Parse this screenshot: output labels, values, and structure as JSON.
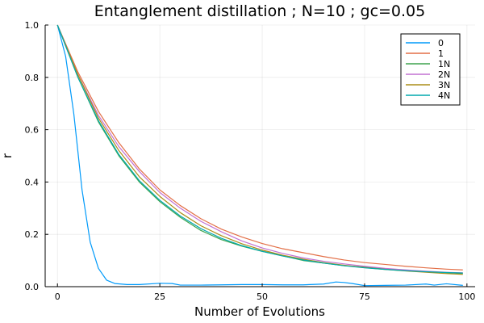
{
  "chart_data": {
    "type": "line",
    "title": "Entanglement distillation ; N=10 ; gc=0.05",
    "xlabel": "Number of Evolutions",
    "ylabel": "r",
    "xlim": [
      -3,
      102
    ],
    "ylim": [
      0.0,
      1.0
    ],
    "x_ticks": [
      0,
      25,
      50,
      75,
      100
    ],
    "x_tick_labels": [
      "0",
      "25",
      "50",
      "75",
      "100"
    ],
    "y_ticks": [
      0.0,
      0.2,
      0.4,
      0.6,
      0.8,
      1.0
    ],
    "y_tick_labels": [
      "0.0",
      "0.2",
      "0.4",
      "0.6",
      "0.8",
      "1.0"
    ],
    "grid": true,
    "legend_position": "top-right",
    "x": [
      0,
      5,
      10,
      15,
      20,
      25,
      30,
      35,
      40,
      45,
      50,
      55,
      60,
      65,
      70,
      75,
      80,
      85,
      90,
      95,
      99
    ],
    "series": [
      {
        "name": "0",
        "color": "#009AFA",
        "x": [
          0,
          2,
          4,
          6,
          8,
          10,
          12,
          14,
          17,
          20,
          25,
          28,
          30,
          35,
          40,
          45,
          50,
          55,
          60,
          65,
          68,
          70,
          72,
          75,
          80,
          85,
          90,
          92,
          95,
          99
        ],
        "values": [
          1.0,
          0.88,
          0.66,
          0.37,
          0.17,
          0.07,
          0.025,
          0.012,
          0.008,
          0.008,
          0.013,
          0.012,
          0.006,
          0.006,
          0.007,
          0.008,
          0.008,
          0.007,
          0.007,
          0.01,
          0.018,
          0.016,
          0.012,
          0.004,
          0.005,
          0.006,
          0.01,
          0.006,
          0.011,
          0.005
        ]
      },
      {
        "name": "1",
        "color": "#E36F47",
        "values": [
          1.0,
          0.82,
          0.67,
          0.55,
          0.45,
          0.37,
          0.31,
          0.26,
          0.22,
          0.19,
          0.165,
          0.145,
          0.13,
          0.115,
          0.102,
          0.092,
          0.085,
          0.078,
          0.072,
          0.067,
          0.064
        ]
      },
      {
        "name": "1N",
        "color": "#3EA44E",
        "values": [
          1.0,
          0.8,
          0.63,
          0.5,
          0.4,
          0.325,
          0.265,
          0.215,
          0.18,
          0.155,
          0.135,
          0.118,
          0.1,
          0.09,
          0.08,
          0.075,
          0.068,
          0.063,
          0.058,
          0.053,
          0.05
        ]
      },
      {
        "name": "2N",
        "color": "#C271D2",
        "values": [
          1.0,
          0.81,
          0.655,
          0.535,
          0.44,
          0.36,
          0.3,
          0.25,
          0.21,
          0.175,
          0.148,
          0.127,
          0.11,
          0.097,
          0.087,
          0.078,
          0.07,
          0.064,
          0.059,
          0.055,
          0.053
        ]
      },
      {
        "name": "3N",
        "color": "#AC8D18",
        "values": [
          1.0,
          0.81,
          0.645,
          0.52,
          0.42,
          0.345,
          0.283,
          0.233,
          0.195,
          0.164,
          0.14,
          0.12,
          0.105,
          0.092,
          0.082,
          0.073,
          0.066,
          0.06,
          0.055,
          0.05,
          0.047
        ]
      },
      {
        "name": "4N",
        "color": "#00A9AD",
        "values": [
          1.0,
          0.8,
          0.635,
          0.505,
          0.405,
          0.33,
          0.27,
          0.222,
          0.185,
          0.157,
          0.135,
          0.117,
          0.102,
          0.09,
          0.08,
          0.072,
          0.066,
          0.061,
          0.057,
          0.054,
          0.052
        ]
      }
    ]
  }
}
